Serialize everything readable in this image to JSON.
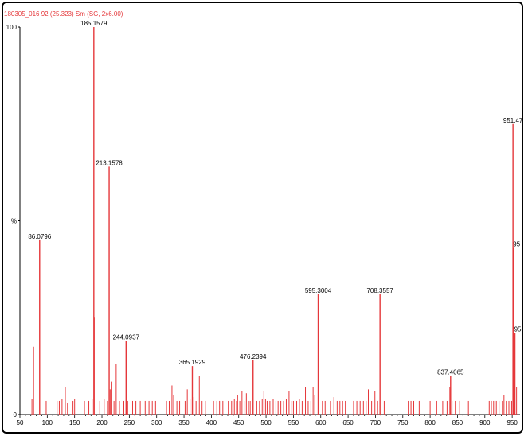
{
  "header": {
    "text": "180305_016  92 (25.323) Sm (SG, 2x6.00)"
  },
  "colors": {
    "peak": "#e5373a",
    "axis": "#000000",
    "label": "#000000"
  },
  "chart_data": {
    "type": "bar",
    "title": "",
    "xlabel": "",
    "ylabel": "%",
    "xlim": [
      50,
      960
    ],
    "ylim": [
      0,
      100
    ],
    "x_ticks": [
      50,
      100,
      150,
      200,
      250,
      300,
      350,
      400,
      450,
      500,
      550,
      600,
      650,
      700,
      750,
      800,
      850,
      900,
      950
    ],
    "y_ticks": [
      {
        "value": 0,
        "label": "0"
      },
      {
        "value": 50,
        "label": "%"
      },
      {
        "value": 100,
        "label": "100"
      }
    ],
    "labeled_peaks": [
      {
        "x": 86.0796,
        "y": 45,
        "label": "86.0796"
      },
      {
        "x": 185.1579,
        "y": 100,
        "label": "185.1579"
      },
      {
        "x": 213.1578,
        "y": 64,
        "label": "213.1578"
      },
      {
        "x": 244.0937,
        "y": 19,
        "label": "244.0937"
      },
      {
        "x": 365.1929,
        "y": 12.5,
        "label": "365.1929"
      },
      {
        "x": 476.2394,
        "y": 14,
        "label": "476.2394"
      },
      {
        "x": 595.3004,
        "y": 31,
        "label": "595.3004"
      },
      {
        "x": 708.3557,
        "y": 31,
        "label": "708.3557"
      },
      {
        "x": 837.4065,
        "y": 10,
        "label": "837.4065"
      },
      {
        "x": 951.47,
        "y": 75,
        "label": "951.47"
      },
      {
        "x": 953,
        "y": 43,
        "label": "95"
      },
      {
        "x": 955,
        "y": 21,
        "label": "95"
      }
    ],
    "minor_peaks": [
      [
        72,
        4
      ],
      [
        75,
        17.5
      ],
      [
        98,
        3.5
      ],
      [
        118,
        3.5
      ],
      [
        122,
        3.5
      ],
      [
        127,
        4
      ],
      [
        133,
        7
      ],
      [
        137,
        3
      ],
      [
        147,
        3.5
      ],
      [
        150,
        4
      ],
      [
        168,
        3.5
      ],
      [
        176,
        3.5
      ],
      [
        182,
        4
      ],
      [
        186,
        25
      ],
      [
        196,
        3.5
      ],
      [
        204,
        4
      ],
      [
        210,
        3.5
      ],
      [
        215,
        6.5
      ],
      [
        218,
        8.5
      ],
      [
        222,
        3.5
      ],
      [
        226,
        13
      ],
      [
        232,
        3.5
      ],
      [
        240,
        3.5
      ],
      [
        247,
        3.5
      ],
      [
        256,
        3.5
      ],
      [
        262,
        3.5
      ],
      [
        270,
        3.5
      ],
      [
        279,
        3.5
      ],
      [
        286,
        3.5
      ],
      [
        292,
        3.5
      ],
      [
        298,
        3.5
      ],
      [
        318,
        3.5
      ],
      [
        323,
        3.5
      ],
      [
        328,
        7.5
      ],
      [
        331,
        5
      ],
      [
        337,
        3.5
      ],
      [
        342,
        3.5
      ],
      [
        352,
        3.5
      ],
      [
        356,
        6.5
      ],
      [
        361,
        4
      ],
      [
        368,
        4.5
      ],
      [
        372,
        3.5
      ],
      [
        378,
        10
      ],
      [
        383,
        3.5
      ],
      [
        389,
        3.5
      ],
      [
        404,
        3.5
      ],
      [
        410,
        3.5
      ],
      [
        415,
        3.5
      ],
      [
        421,
        3.5
      ],
      [
        431,
        3.5
      ],
      [
        437,
        3.5
      ],
      [
        442,
        4
      ],
      [
        446,
        3.5
      ],
      [
        448,
        5
      ],
      [
        452,
        3.5
      ],
      [
        456,
        6
      ],
      [
        460,
        3.5
      ],
      [
        464,
        5.5
      ],
      [
        468,
        3.5
      ],
      [
        471,
        3.5
      ],
      [
        483,
        3.5
      ],
      [
        488,
        3.5
      ],
      [
        493,
        4
      ],
      [
        496,
        6
      ],
      [
        499,
        4
      ],
      [
        502,
        3.5
      ],
      [
        507,
        3.5
      ],
      [
        513,
        4
      ],
      [
        518,
        3.5
      ],
      [
        522,
        3.5
      ],
      [
        527,
        3.5
      ],
      [
        532,
        3.5
      ],
      [
        537,
        4
      ],
      [
        542,
        6
      ],
      [
        546,
        3.5
      ],
      [
        550,
        3.5
      ],
      [
        556,
        3.5
      ],
      [
        561,
        4
      ],
      [
        566,
        3.5
      ],
      [
        572,
        7
      ],
      [
        577,
        3.5
      ],
      [
        582,
        3.5
      ],
      [
        586,
        7
      ],
      [
        589,
        5
      ],
      [
        603,
        3.5
      ],
      [
        608,
        3.5
      ],
      [
        618,
        3.5
      ],
      [
        624,
        4.5
      ],
      [
        630,
        3.5
      ],
      [
        635,
        3.5
      ],
      [
        640,
        3.5
      ],
      [
        645,
        3.5
      ],
      [
        660,
        3.5
      ],
      [
        666,
        3.5
      ],
      [
        672,
        3.5
      ],
      [
        678,
        3.5
      ],
      [
        683,
        3.5
      ],
      [
        687,
        6.5
      ],
      [
        693,
        3.5
      ],
      [
        699,
        6
      ],
      [
        704,
        3.5
      ],
      [
        716,
        3.5
      ],
      [
        760,
        3.5
      ],
      [
        765,
        3.5
      ],
      [
        770,
        3.5
      ],
      [
        780,
        3.5
      ],
      [
        800,
        3.5
      ],
      [
        812,
        3.5
      ],
      [
        823,
        3.5
      ],
      [
        831,
        3.5
      ],
      [
        836,
        7
      ],
      [
        840,
        3.5
      ],
      [
        846,
        3.5
      ],
      [
        854,
        3.5
      ],
      [
        870,
        3.5
      ],
      [
        908,
        3.5
      ],
      [
        912,
        3.5
      ],
      [
        916,
        3.5
      ],
      [
        921,
        3.5
      ],
      [
        926,
        3.5
      ],
      [
        932,
        3.5
      ],
      [
        935,
        5
      ],
      [
        940,
        3.5
      ],
      [
        944,
        3.5
      ],
      [
        949,
        3.5
      ],
      [
        958,
        7
      ]
    ]
  }
}
